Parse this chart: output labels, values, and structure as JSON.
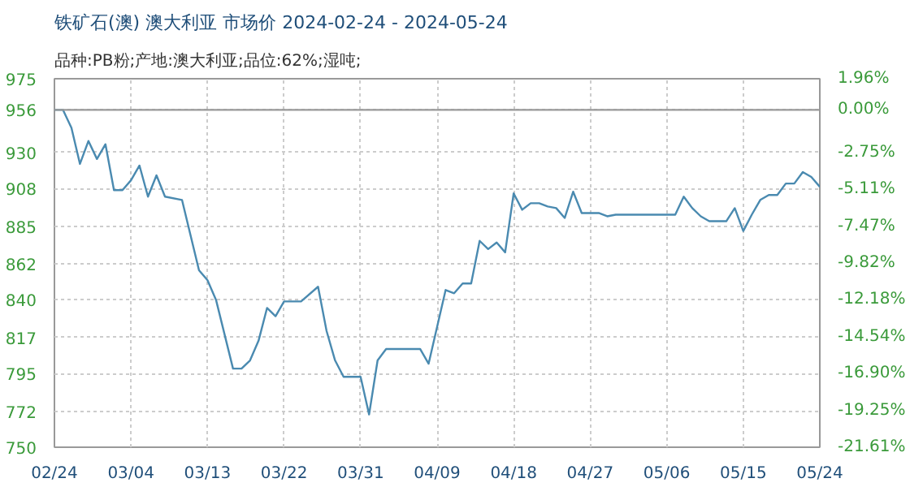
{
  "chart_data": {
    "type": "line",
    "title": "铁矿石(澳) 澳大利亚 市场价 2024-02-24 - 2024-05-24",
    "subtitle": "品种:PB粉;产地:澳大利亚;品位:62%;湿吨;",
    "x": [
      "2024-02-24",
      "2024-02-25",
      "2024-02-26",
      "2024-02-27",
      "2024-02-28",
      "2024-02-29",
      "2024-03-01",
      "2024-03-02",
      "2024-03-03",
      "2024-03-04",
      "2024-03-05",
      "2024-03-06",
      "2024-03-07",
      "2024-03-08",
      "2024-03-10",
      "2024-03-12",
      "2024-03-13",
      "2024-03-14",
      "2024-03-16",
      "2024-03-17",
      "2024-03-18",
      "2024-03-19",
      "2024-03-20",
      "2024-03-21",
      "2024-03-22",
      "2024-03-24",
      "2024-03-26",
      "2024-03-27",
      "2024-03-28",
      "2024-03-29",
      "2024-03-31",
      "2024-04-01",
      "2024-04-02",
      "2024-04-03",
      "2024-04-07",
      "2024-04-08",
      "2024-04-10",
      "2024-04-11",
      "2024-04-12",
      "2024-04-13",
      "2024-04-14",
      "2024-04-15",
      "2024-04-16",
      "2024-04-17",
      "2024-04-18",
      "2024-04-19",
      "2024-04-20",
      "2024-04-21",
      "2024-04-22",
      "2024-04-23",
      "2024-04-24",
      "2024-04-25",
      "2024-04-26",
      "2024-04-28",
      "2024-04-29",
      "2024-04-30",
      "2024-05-07",
      "2024-05-08",
      "2024-05-09",
      "2024-05-10",
      "2024-05-11",
      "2024-05-13",
      "2024-05-14",
      "2024-05-15",
      "2024-05-16",
      "2024-05-17",
      "2024-05-18",
      "2024-05-19",
      "2024-05-20",
      "2024-05-21",
      "2024-05-22",
      "2024-05-23",
      "2024-05-24"
    ],
    "series": [
      {
        "color": "#4a8ab0",
        "values": [
          956,
          956,
          945,
          923,
          937,
          926,
          935,
          907,
          907,
          913,
          922,
          903,
          916,
          903,
          901,
          858,
          852,
          840,
          798,
          798,
          803,
          815,
          835,
          830,
          839,
          839,
          848,
          821,
          803,
          793,
          793,
          770,
          803,
          810,
          810,
          801,
          846,
          844,
          850,
          850,
          876,
          871,
          875,
          869,
          905,
          895,
          899,
          899,
          897,
          896,
          890,
          906,
          893,
          893,
          891,
          892,
          892,
          903,
          896,
          891,
          888,
          888,
          896,
          882,
          892,
          901,
          904,
          904,
          911,
          911,
          918,
          915,
          909
        ]
      }
    ],
    "xlim": [
      "2024-02-24",
      "2024-05-24"
    ],
    "xticks": [
      {
        "value": "2024-02-24",
        "label": "02/24"
      },
      {
        "value": "2024-03-04",
        "label": "03/04"
      },
      {
        "value": "2024-03-13",
        "label": "03/13"
      },
      {
        "value": "2024-03-22",
        "label": "03/22"
      },
      {
        "value": "2024-03-31",
        "label": "03/31"
      },
      {
        "value": "2024-04-09",
        "label": "04/09"
      },
      {
        "value": "2024-04-18",
        "label": "04/18"
      },
      {
        "value": "2024-04-27",
        "label": "04/27"
      },
      {
        "value": "2024-05-06",
        "label": "05/06"
      },
      {
        "value": "2024-05-15",
        "label": "05/15"
      },
      {
        "value": "2024-05-24",
        "label": "05/24"
      }
    ],
    "ylim": [
      750,
      975
    ],
    "yticks": [
      750,
      772,
      795,
      817,
      840,
      862,
      885,
      908,
      930,
      956,
      975
    ],
    "y2lim": [
      -21.61,
      1.96
    ],
    "y2ticks": [
      {
        "value": -21.61,
        "label": "-21.61%"
      },
      {
        "value": -19.25,
        "label": "-19.25%"
      },
      {
        "value": -16.9,
        "label": "-16.90%"
      },
      {
        "value": -14.54,
        "label": "-14.54%"
      },
      {
        "value": -12.18,
        "label": "-12.18%"
      },
      {
        "value": -9.82,
        "label": "-9.82%"
      },
      {
        "value": -7.47,
        "label": "-7.47%"
      },
      {
        "value": -5.11,
        "label": "-5.11%"
      },
      {
        "value": -2.75,
        "label": "-2.75%"
      },
      {
        "value": 0,
        "label": "0.00%"
      },
      {
        "value": 1.96,
        "label": "1.96%"
      }
    ],
    "ref_lines": [
      {
        "axis": "y",
        "value": 956,
        "color": "#999999"
      }
    ],
    "grid": true,
    "marker": "none",
    "line_style": "solid"
  }
}
